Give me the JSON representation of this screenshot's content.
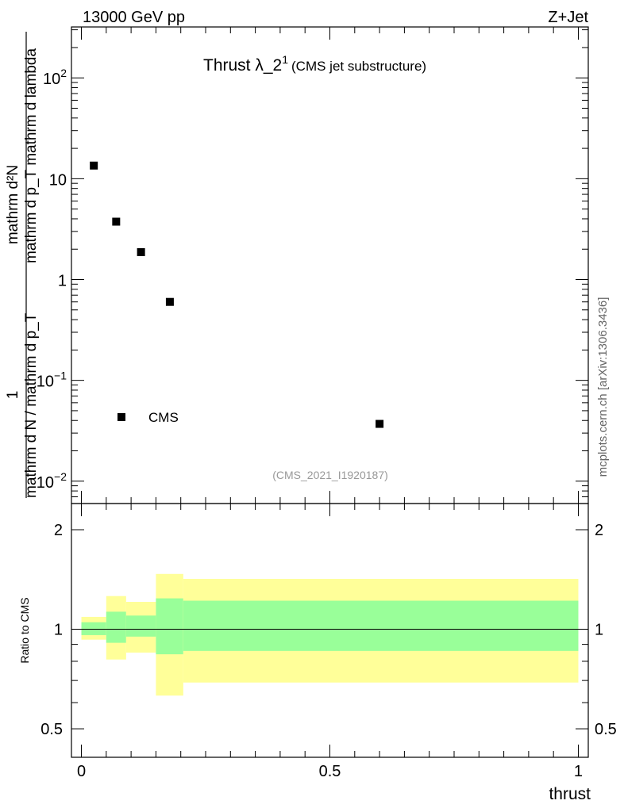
{
  "header": {
    "energy_label": "13000 GeV pp",
    "process_label": "Z+Jet",
    "title_main": "Thrust λ_2",
    "title_sup": "1",
    "title_sub": "(CMS jet substructure)",
    "analysis_id": "(CMS_2021_I1920187)",
    "side_credit": "mcplots.cern.ch [arXiv:1306.3436]"
  },
  "axes": {
    "ylabel_top_numerator": "mathrm d²N",
    "ylabel_top_denominator": "mathrm d p_T mathrm d lambda",
    "ylabel_bottom_numerator": "1",
    "ylabel_bottom_denominator": "mathrm d N / mathrm d p_T",
    "ratio_ylabel": "Ratio to CMS",
    "xlabel": "thrust",
    "main_ytick_labels": [
      {
        "value": 0.01,
        "base": "10",
        "exp": "−2"
      },
      {
        "value": 0.1,
        "base": "10",
        "exp": "−1"
      },
      {
        "value": 1,
        "base": "1",
        "exp": ""
      },
      {
        "value": 10,
        "base": "10",
        "exp": ""
      },
      {
        "value": 100,
        "base": "10",
        "exp": "2"
      }
    ],
    "ratio_ytick_labels": [
      {
        "value": 0.5,
        "label": "0.5"
      },
      {
        "value": 1,
        "label": "1"
      },
      {
        "value": 2,
        "label": "2"
      }
    ],
    "xtick_labels": [
      {
        "value": 0,
        "label": "0"
      },
      {
        "value": 0.5,
        "label": "0.5"
      },
      {
        "value": 1,
        "label": "1"
      }
    ]
  },
  "legend": {
    "entries": [
      {
        "name": "CMS",
        "marker": "filled-square",
        "color": "#000000"
      }
    ],
    "placement": "lower-left"
  },
  "colors": {
    "band_inner": "#99ff99",
    "band_outer": "#ffff99",
    "marker": "#000000"
  },
  "chart_data": [
    {
      "type": "scatter",
      "panel": "main",
      "yscale": "log",
      "xlim": [
        -0.02,
        1.02
      ],
      "ylim": [
        0.006,
        320
      ],
      "series": [
        {
          "name": "CMS",
          "points": [
            {
              "x": 0.025,
              "y": 13.5
            },
            {
              "x": 0.07,
              "y": 3.75
            },
            {
              "x": 0.12,
              "y": 1.87
            },
            {
              "x": 0.178,
              "y": 0.6
            },
            {
              "x": 0.6,
              "y": 0.037
            }
          ]
        }
      ]
    },
    {
      "type": "area",
      "panel": "ratio",
      "yscale": "log",
      "xlim": [
        -0.02,
        1.02
      ],
      "ylim": [
        0.41,
        2.4
      ],
      "reference_line": 1,
      "bins": [
        {
          "xlo": 0.0,
          "xhi": 0.05,
          "inner": [
            0.96,
            1.05
          ],
          "outer": [
            0.93,
            1.09
          ]
        },
        {
          "xlo": 0.05,
          "xhi": 0.09,
          "inner": [
            0.91,
            1.13
          ],
          "outer": [
            0.81,
            1.26
          ]
        },
        {
          "xlo": 0.09,
          "xhi": 0.15,
          "inner": [
            0.95,
            1.1
          ],
          "outer": [
            0.85,
            1.21
          ]
        },
        {
          "xlo": 0.15,
          "xhi": 0.205,
          "inner": [
            0.84,
            1.24
          ],
          "outer": [
            0.63,
            1.47
          ]
        },
        {
          "xlo": 0.205,
          "xhi": 1.0,
          "inner": [
            0.86,
            1.22
          ],
          "outer": [
            0.69,
            1.42
          ]
        }
      ]
    }
  ]
}
